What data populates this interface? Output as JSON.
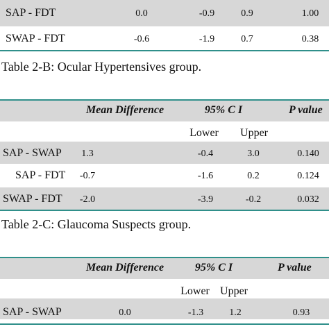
{
  "top_table": {
    "rows": [
      {
        "label": "SAP - FDT",
        "mean": "0.0",
        "lower": "-0.9",
        "upper": "0.9",
        "p": "1.00"
      },
      {
        "label": "SWAP - FDT",
        "mean": "-0.6",
        "lower": "-1.9",
        "upper": "0.7",
        "p": "0.38"
      }
    ]
  },
  "table_2b": {
    "caption": "Table 2-B: Ocular Hypertensives group.",
    "headers": {
      "mean": "Mean Difference",
      "ci": "95% C I",
      "p": "P value",
      "lower": "Lower",
      "upper": "Upper"
    },
    "rows": [
      {
        "label": "SAP - SWAP",
        "mean": "1.3",
        "lower": "-0.4",
        "upper": "3.0",
        "p": "0.140"
      },
      {
        "label": "SAP - FDT",
        "mean": "-0.7",
        "lower": "-1.6",
        "upper": "0.2",
        "p": "0.124"
      },
      {
        "label": "SWAP - FDT",
        "mean": "-2.0",
        "lower": "-3.9",
        "upper": "-0.2",
        "p": "0.032"
      }
    ]
  },
  "table_2c": {
    "caption": "Table 2-C: Glaucoma Suspects group.",
    "headers": {
      "mean": "Mean Difference",
      "ci": "95% C I",
      "p": "P value",
      "lower": "Lower",
      "upper": "Upper"
    },
    "rows": [
      {
        "label": "SAP - SWAP",
        "mean": "0.0",
        "lower": "-1.3",
        "upper": "1.2",
        "p": "0.93"
      }
    ]
  },
  "colors": {
    "band": "#d7d7d7",
    "rule": "#2f8f8a"
  }
}
